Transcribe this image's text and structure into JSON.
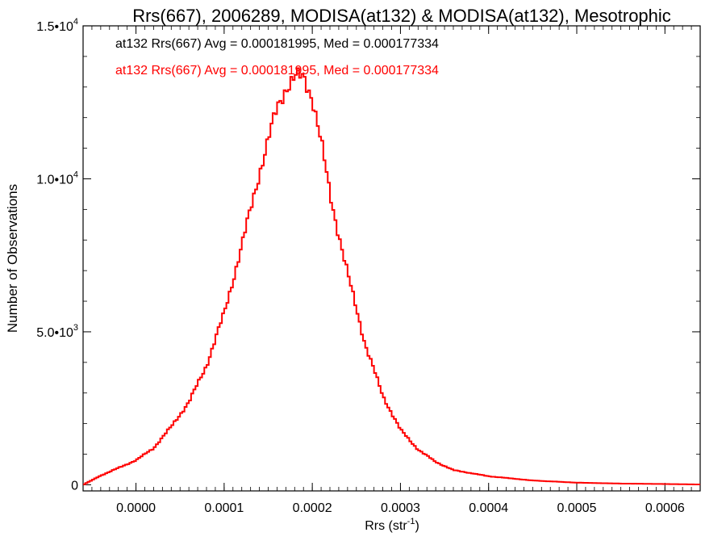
{
  "chart_data": {
    "type": "histogram",
    "title": "Rrs(667), 2006289, MODISA(at132) & MODISA(at132), Mesotrophic",
    "xlabel_base": "Rrs (str",
    "xlabel_exp": "-1",
    "xlabel_tail": ")",
    "ylabel": "Number of Observations",
    "xlim": [
      -6e-05,
      0.00064
    ],
    "ylim": [
      -200,
      15000
    ],
    "x_ticks": [
      {
        "value": 0.0,
        "label": "0.0000"
      },
      {
        "value": 0.0001,
        "label": "0.0001"
      },
      {
        "value": 0.0002,
        "label": "0.0002"
      },
      {
        "value": 0.0003,
        "label": "0.0003"
      },
      {
        "value": 0.0004,
        "label": "0.0004"
      },
      {
        "value": 0.0005,
        "label": "0.0005"
      },
      {
        "value": 0.0006,
        "label": "0.0006"
      }
    ],
    "y_ticks": [
      {
        "value": 0,
        "mant": "0",
        "exp": ""
      },
      {
        "value": 5000,
        "mant": "5.0•10",
        "exp": "3"
      },
      {
        "value": 10000,
        "mant": "1.0•10",
        "exp": "4"
      },
      {
        "value": 15000,
        "mant": "1.5•10",
        "exp": "4"
      }
    ],
    "legend": [
      {
        "text": "at132 Rrs(667) Avg = 0.000181995, Med = 0.000177334",
        "color": "#000000"
      },
      {
        "text": "at132 Rrs(667) Avg = 0.000181995, Med = 0.000177334",
        "color": "#ff0000"
      }
    ],
    "series": [
      {
        "color": "#ff0000",
        "anchors_x": [
          -6e-05,
          -4e-05,
          -2e-05,
          0.0,
          2e-05,
          4e-05,
          6e-05,
          8e-05,
          0.0001,
          0.00012,
          0.00014,
          0.00016,
          0.00017,
          0.00018,
          0.00019,
          0.0002,
          0.00021,
          0.00022,
          0.00024,
          0.00026,
          0.00028,
          0.0003,
          0.00032,
          0.00034,
          0.00036,
          0.0004,
          0.00045,
          0.0005,
          0.00055,
          0.0006,
          0.00064
        ],
        "anchors_y": [
          0,
          300,
          550,
          800,
          1200,
          1900,
          2700,
          3900,
          5600,
          7800,
          10200,
          12300,
          13000,
          13300,
          13300,
          12700,
          11200,
          9500,
          6900,
          4600,
          2900,
          1800,
          1150,
          750,
          480,
          280,
          140,
          70,
          40,
          25,
          10
        ]
      }
    ]
  }
}
